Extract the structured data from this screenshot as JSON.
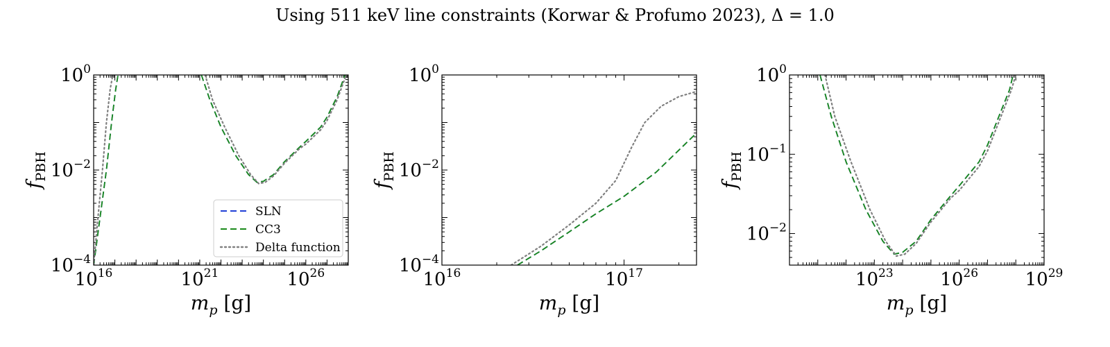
{
  "figure": {
    "suptitle": "Using 511 keV line constraints (Korwar & Profumo 2023), Δ = 1.0"
  },
  "colors": {
    "SLN": "#1f3fd6",
    "CC3": "#1a8a1a",
    "Delta function": "#808080"
  },
  "legend": {
    "placement": "lower-right of first panel",
    "entries": [
      "SLN",
      "CC3",
      "Delta function"
    ]
  },
  "chart_data": [
    {
      "type": "line",
      "xscale": "log",
      "yscale": "log",
      "xlabel_main": "m",
      "xlabel_sub": "p",
      "xlabel_unit": " [g]",
      "ylabel_main": "f",
      "ylabel_sub": "PBH",
      "xlim": [
        1e+16,
        1e+28
      ],
      "ylim": [
        0.0001,
        1
      ],
      "xticks": [
        {
          "v": 1e+16,
          "base": "10",
          "exp": "16"
        },
        {
          "v": 1e+21,
          "base": "10",
          "exp": "21"
        },
        {
          "v": 1e+26,
          "base": "10",
          "exp": "26"
        }
      ],
      "yticks": [
        {
          "v": 1,
          "base": "10",
          "exp": "0"
        },
        {
          "v": 0.01,
          "base": "10",
          "exp": "−2"
        },
        {
          "v": 0.0001,
          "base": "10",
          "exp": "−4"
        }
      ],
      "show_legend": true,
      "series": [
        {
          "name": "SLN",
          "style": "dash",
          "segments": [
            [
              [
                1e+16,
                0.0001
              ],
              [
                2e+16,
                0.001
              ],
              [
                4e+16,
                0.01
              ],
              [
                7e+16,
                0.1
              ],
              [
                1.1e+17,
                0.5
              ],
              [
                1.4e+17,
                1
              ]
            ],
            [
              [
                1.2e+21,
                1
              ],
              [
                3e+21,
                0.3
              ],
              [
                1e+22,
                0.08
              ],
              [
                5e+22,
                0.02
              ],
              [
                2e+23,
                0.008
              ],
              [
                5e+23,
                0.0055
              ],
              [
                1e+24,
                0.0058
              ],
              [
                3e+24,
                0.008
              ],
              [
                1e+25,
                0.015
              ],
              [
                5e+25,
                0.03
              ],
              [
                1e+26,
                0.04
              ],
              [
                5e+26,
                0.08
              ],
              [
                1e+27,
                0.13
              ],
              [
                3e+27,
                0.35
              ],
              [
                7e+27,
                1
              ]
            ]
          ]
        },
        {
          "name": "CC3",
          "style": "dash",
          "segments": [
            [
              [
                1e+16,
                0.0001
              ],
              [
                2e+16,
                0.001
              ],
              [
                4e+16,
                0.01
              ],
              [
                7e+16,
                0.1
              ],
              [
                1.1e+17,
                0.5
              ],
              [
                1.4e+17,
                1
              ]
            ],
            [
              [
                1.2e+21,
                1
              ],
              [
                3e+21,
                0.3
              ],
              [
                1e+22,
                0.08
              ],
              [
                5e+22,
                0.02
              ],
              [
                2e+23,
                0.008
              ],
              [
                5e+23,
                0.0055
              ],
              [
                1e+24,
                0.0058
              ],
              [
                3e+24,
                0.008
              ],
              [
                1e+25,
                0.015
              ],
              [
                5e+25,
                0.03
              ],
              [
                1e+26,
                0.04
              ],
              [
                5e+26,
                0.08
              ],
              [
                1e+27,
                0.13
              ],
              [
                3e+27,
                0.35
              ],
              [
                7e+27,
                1
              ]
            ]
          ]
        },
        {
          "name": "Delta function",
          "style": "dot",
          "segments": [
            [
              [
                1e+16,
                0.0001
              ],
              [
                1.6e+16,
                0.001
              ],
              [
                2.6e+16,
                0.01
              ],
              [
                4e+16,
                0.1
              ],
              [
                6e+16,
                0.5
              ],
              [
                8e+16,
                1
              ]
            ],
            [
              [
                1.8e+21,
                1
              ],
              [
                4e+21,
                0.3
              ],
              [
                1.5e+22,
                0.08
              ],
              [
                7e+22,
                0.02
              ],
              [
                2.5e+23,
                0.008
              ],
              [
                6e+23,
                0.0052
              ],
              [
                1.2e+24,
                0.0055
              ],
              [
                3e+24,
                0.0075
              ],
              [
                1e+25,
                0.014
              ],
              [
                5e+25,
                0.028
              ],
              [
                1e+26,
                0.035
              ],
              [
                5e+26,
                0.07
              ],
              [
                1e+27,
                0.11
              ],
              [
                3e+27,
                0.3
              ],
              [
                8e+27,
                1
              ]
            ]
          ]
        }
      ]
    },
    {
      "type": "line",
      "xscale": "log",
      "yscale": "log",
      "xlabel_main": "m",
      "xlabel_sub": "p",
      "xlabel_unit": " [g]",
      "ylabel_main": "f",
      "ylabel_sub": "PBH",
      "xlim": [
        1e+16,
        2.5e+17
      ],
      "ylim": [
        0.0001,
        1
      ],
      "xticks": [
        {
          "v": 1e+16,
          "base": "10",
          "exp": "16"
        },
        {
          "v": 1e+17,
          "base": "10",
          "exp": "17"
        }
      ],
      "yticks": [
        {
          "v": 1,
          "base": "10",
          "exp": "0"
        },
        {
          "v": 0.01,
          "base": "10",
          "exp": "−2"
        },
        {
          "v": 0.0001,
          "base": "10",
          "exp": "−4"
        }
      ],
      "show_legend": false,
      "series": [
        {
          "name": "SLN",
          "style": "dash",
          "segments": [
            [
              [
                2.6e+16,
                0.0001
              ],
              [
                3.5e+16,
                0.0002
              ],
              [
                5e+16,
                0.0005
              ],
              [
                7e+16,
                0.0012
              ],
              [
                1e+17,
                0.0028
              ],
              [
                1.5e+17,
                0.009
              ],
              [
                2.5e+17,
                0.06
              ]
            ]
          ]
        },
        {
          "name": "CC3",
          "style": "dash",
          "segments": [
            [
              [
                2.6e+16,
                0.0001
              ],
              [
                3.5e+16,
                0.0002
              ],
              [
                5e+16,
                0.0005
              ],
              [
                7e+16,
                0.0012
              ],
              [
                1e+17,
                0.0028
              ],
              [
                1.5e+17,
                0.009
              ],
              [
                2.5e+17,
                0.06
              ]
            ]
          ]
        },
        {
          "name": "Delta function",
          "style": "dot",
          "segments": [
            [
              [
                2.4e+16,
                0.0001
              ],
              [
                3.5e+16,
                0.00025
              ],
              [
                5e+16,
                0.0007
              ],
              [
                7e+16,
                0.002
              ],
              [
                9e+16,
                0.006
              ],
              [
                1.1e+17,
                0.03
              ],
              [
                1.3e+17,
                0.1
              ],
              [
                1.6e+17,
                0.22
              ],
              [
                2e+17,
                0.35
              ],
              [
                2.5e+17,
                0.45
              ]
            ]
          ]
        }
      ]
    },
    {
      "type": "line",
      "xscale": "log",
      "yscale": "log",
      "xlabel_main": "m",
      "xlabel_sub": "p",
      "xlabel_unit": " [g]",
      "ylabel_main": "f",
      "ylabel_sub": "PBH",
      "xlim": [
        1e+20,
        1e+29
      ],
      "ylim": [
        0.004,
        1
      ],
      "xticks": [
        {
          "v": 1e+23,
          "base": "10",
          "exp": "23"
        },
        {
          "v": 1e+26,
          "base": "10",
          "exp": "26"
        },
        {
          "v": 1e+29,
          "base": "10",
          "exp": "29"
        }
      ],
      "yticks": [
        {
          "v": 1,
          "base": "10",
          "exp": "0"
        },
        {
          "v": 0.1,
          "base": "10",
          "exp": "−1"
        },
        {
          "v": 0.01,
          "base": "10",
          "exp": "−2"
        }
      ],
      "show_legend": false,
      "series": [
        {
          "name": "SLN",
          "style": "dash",
          "segments": [
            [
              [
                1.2e+21,
                1
              ],
              [
                3e+21,
                0.3
              ],
              [
                1e+22,
                0.08
              ],
              [
                5e+22,
                0.02
              ],
              [
                2e+23,
                0.008
              ],
              [
                5e+23,
                0.0055
              ],
              [
                1e+24,
                0.0058
              ],
              [
                3e+24,
                0.008
              ],
              [
                1e+25,
                0.015
              ],
              [
                5e+25,
                0.03
              ],
              [
                1e+26,
                0.04
              ],
              [
                5e+26,
                0.08
              ],
              [
                1e+27,
                0.13
              ],
              [
                3e+27,
                0.35
              ],
              [
                6e+27,
                0.65
              ],
              [
                8e+27,
                1
              ]
            ]
          ]
        },
        {
          "name": "CC3",
          "style": "dash",
          "segments": [
            [
              [
                1.2e+21,
                1
              ],
              [
                3e+21,
                0.3
              ],
              [
                1e+22,
                0.08
              ],
              [
                5e+22,
                0.02
              ],
              [
                2e+23,
                0.008
              ],
              [
                5e+23,
                0.0055
              ],
              [
                1e+24,
                0.0058
              ],
              [
                3e+24,
                0.008
              ],
              [
                1e+25,
                0.015
              ],
              [
                5e+25,
                0.03
              ],
              [
                1e+26,
                0.04
              ],
              [
                5e+26,
                0.08
              ],
              [
                1e+27,
                0.13
              ],
              [
                3e+27,
                0.35
              ],
              [
                6e+27,
                0.65
              ],
              [
                8e+27,
                1
              ]
            ]
          ]
        },
        {
          "name": "Delta function",
          "style": "dot",
          "segments": [
            [
              [
                1.8e+21,
                1
              ],
              [
                4e+21,
                0.3
              ],
              [
                1.5e+22,
                0.08
              ],
              [
                7e+22,
                0.02
              ],
              [
                2.5e+23,
                0.008
              ],
              [
                6e+23,
                0.0052
              ],
              [
                1.2e+24,
                0.0055
              ],
              [
                3e+24,
                0.0075
              ],
              [
                1e+25,
                0.014
              ],
              [
                5e+25,
                0.028
              ],
              [
                1e+26,
                0.035
              ],
              [
                5e+26,
                0.07
              ],
              [
                1e+27,
                0.11
              ],
              [
                3e+27,
                0.3
              ],
              [
                7e+27,
                0.65
              ],
              [
                1e+28,
                1
              ]
            ]
          ]
        }
      ]
    }
  ]
}
